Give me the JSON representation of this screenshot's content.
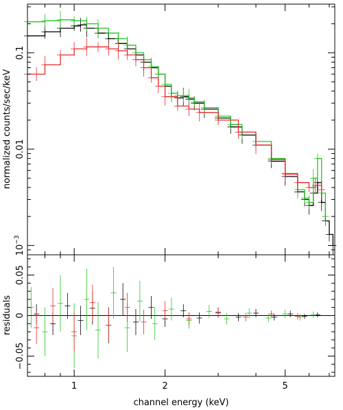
{
  "colors": {
    "axes": "#000000",
    "series_black": "#000000",
    "series_red": "#e8262a",
    "series_green": "#22c522",
    "data_blue": "#5566cc"
  },
  "chart_data": [
    {
      "panel": "spectrum",
      "type": "line",
      "title": "",
      "xlabel": "",
      "ylabel": "normalized counts/sec/keV",
      "xscale": "log",
      "yscale": "log",
      "xlim": [
        0.7,
        7.3
      ],
      "ylim": [
        0.0008,
        0.32
      ],
      "yticks": [
        0.001,
        0.01,
        0.1
      ],
      "yticklabels": [
        "10^-3",
        "0.01",
        "0.1"
      ],
      "grid": false,
      "legend": "none",
      "series": [
        {
          "color_key": "series_black",
          "x": [
            0.7,
            0.8,
            0.9,
            1.0,
            1.05,
            1.1,
            1.2,
            1.3,
            1.4,
            1.5,
            1.6,
            1.7,
            1.8,
            1.9,
            2.0,
            2.1,
            2.2,
            2.3,
            2.4,
            2.5,
            2.7,
            3.0,
            3.3,
            3.6,
            4.0,
            4.5,
            5.0,
            5.5,
            5.8,
            6.0,
            6.2,
            6.4,
            6.6,
            6.8,
            7.0,
            7.2
          ],
          "y": [
            0.15,
            0.165,
            0.18,
            0.19,
            0.195,
            0.18,
            0.16,
            0.14,
            0.125,
            0.11,
            0.095,
            0.08,
            0.07,
            0.06,
            0.045,
            0.035,
            0.034,
            0.035,
            0.033,
            0.03,
            0.026,
            0.021,
            0.017,
            0.014,
            0.011,
            0.0075,
            0.0052,
            0.0036,
            0.003,
            0.0026,
            0.0035,
            0.0045,
            0.0028,
            0.0018,
            0.0013,
            0.001
          ]
        },
        {
          "color_key": "series_green",
          "x": [
            0.7,
            0.8,
            0.9,
            1.0,
            1.1,
            1.2,
            1.3,
            1.4,
            1.5,
            1.6,
            1.7,
            1.8,
            1.9,
            2.0,
            2.1,
            2.2,
            2.3,
            2.4,
            2.5,
            2.7,
            3.0,
            3.3,
            3.6,
            4.0,
            4.5,
            5.0,
            5.5,
            5.8,
            6.0,
            6.2,
            6.4,
            6.6,
            6.8
          ],
          "y": [
            0.21,
            0.215,
            0.22,
            0.215,
            0.2,
            0.18,
            0.16,
            0.14,
            0.12,
            0.1,
            0.085,
            0.072,
            0.06,
            0.047,
            0.038,
            0.036,
            0.036,
            0.034,
            0.031,
            0.027,
            0.022,
            0.018,
            0.015,
            0.012,
            0.008,
            0.0056,
            0.0038,
            0.0031,
            0.0028,
            0.005,
            0.008,
            0.0035,
            0.002
          ]
        },
        {
          "color_key": "series_red",
          "x": [
            0.7,
            0.75,
            0.8,
            0.9,
            1.0,
            1.1,
            1.2,
            1.3,
            1.4,
            1.5,
            1.6,
            1.7,
            1.8,
            1.9,
            2.0,
            2.2,
            2.4,
            2.6,
            3.0,
            3.5,
            4.0,
            4.5,
            5.0,
            5.5,
            6.0,
            6.3,
            6.6
          ],
          "y": [
            0.06,
            0.06,
            0.075,
            0.095,
            0.11,
            0.115,
            0.115,
            0.11,
            0.105,
            0.095,
            0.085,
            0.07,
            0.055,
            0.045,
            0.035,
            0.028,
            0.026,
            0.024,
            0.02,
            0.015,
            0.011,
            0.0078,
            0.0055,
            0.0045,
            0.004,
            0.0042,
            0.0038
          ]
        }
      ]
    },
    {
      "panel": "residuals",
      "type": "scatter",
      "title": "",
      "xlabel": "channel energy (keV)",
      "ylabel": "residuals",
      "xscale": "log",
      "xlim": [
        0.7,
        7.3
      ],
      "ylim": [
        -0.075,
        0.075
      ],
      "xticks": [
        1,
        2,
        5
      ],
      "xticklabels": [
        "1",
        "2",
        "5"
      ],
      "yticks": [
        -0.05,
        0,
        0.05
      ],
      "yticklabels": [
        "−0.05",
        "0",
        "0.05"
      ],
      "reference_line": 0,
      "grid": false,
      "legend": "none",
      "series": [
        {
          "color_key": "series_black",
          "x": [
            0.75,
            0.85,
            0.95,
            1.05,
            1.15,
            1.3,
            1.45,
            1.6,
            1.8,
            2.0,
            2.3,
            2.6,
            3.0,
            3.5,
            4.0,
            4.6,
            5.2,
            5.8,
            6.4
          ],
          "y": [
            0.002,
            -0.01,
            0.012,
            -0.006,
            0.009,
            -0.012,
            0.02,
            -0.008,
            0.01,
            -0.004,
            0.006,
            -0.003,
            0.004,
            -0.002,
            0.003,
            -0.002,
            0.002,
            -0.001,
            0.001
          ],
          "err": [
            0.012,
            0.014,
            0.016,
            0.018,
            0.02,
            0.022,
            0.02,
            0.016,
            0.014,
            0.01,
            0.008,
            0.007,
            0.006,
            0.005,
            0.005,
            0.004,
            0.004,
            0.003,
            0.003
          ]
        },
        {
          "color_key": "series_green",
          "x": [
            0.72,
            0.8,
            0.9,
            1.0,
            1.1,
            1.2,
            1.35,
            1.5,
            1.65,
            1.85,
            2.1,
            2.4,
            2.8,
            3.2,
            3.8,
            4.4,
            5.0,
            5.6,
            6.2
          ],
          "y": [
            0.01,
            -0.02,
            0.015,
            -0.025,
            0.02,
            -0.018,
            0.028,
            -0.015,
            0.018,
            -0.01,
            0.008,
            -0.006,
            0.005,
            -0.004,
            0.003,
            -0.003,
            0.002,
            -0.002,
            0.001
          ],
          "err": [
            0.025,
            0.03,
            0.035,
            0.04,
            0.038,
            0.035,
            0.032,
            0.03,
            0.025,
            0.02,
            0.014,
            0.01,
            0.008,
            0.007,
            0.006,
            0.005,
            0.005,
            0.004,
            0.004
          ]
        },
        {
          "color_key": "series_red",
          "x": [
            0.75,
            0.85,
            1.0,
            1.15,
            1.3,
            1.5,
            1.7,
            2.0,
            2.4,
            3.0,
            3.7,
            4.5,
            5.5
          ],
          "y": [
            -0.015,
            0.012,
            -0.02,
            0.016,
            -0.012,
            0.01,
            -0.008,
            0.006,
            -0.004,
            0.003,
            -0.002,
            0.002,
            -0.001
          ],
          "err": [
            0.02,
            0.022,
            0.024,
            0.022,
            0.02,
            0.018,
            0.015,
            0.012,
            0.008,
            0.006,
            0.005,
            0.004,
            0.004
          ]
        }
      ]
    }
  ]
}
